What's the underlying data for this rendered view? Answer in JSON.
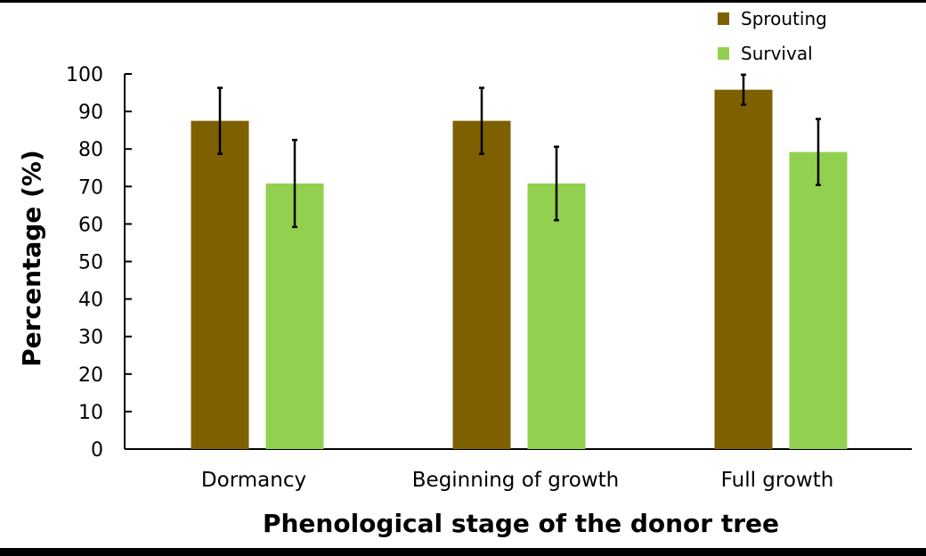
{
  "chart_data": {
    "type": "bar",
    "title": "",
    "xlabel": "Phenological stage of the donor tree",
    "ylabel": "Percentage (%)",
    "ylim": [
      0,
      100
    ],
    "yticks": [
      0,
      10,
      20,
      30,
      40,
      50,
      60,
      70,
      80,
      90,
      100
    ],
    "categories": [
      "Dormancy",
      "Beginning of growth",
      "Full growth"
    ],
    "series": [
      {
        "name": "Sprouting",
        "color": "#7f6000",
        "values": [
          87.5,
          87.5,
          95.8
        ],
        "errors": [
          8.8,
          8.8,
          4.0
        ]
      },
      {
        "name": "Survival",
        "color": "#92d050",
        "values": [
          70.8,
          70.8,
          79.2
        ],
        "errors": [
          11.6,
          9.8,
          8.8
        ]
      }
    ],
    "legend": "top-right",
    "grid": false
  }
}
